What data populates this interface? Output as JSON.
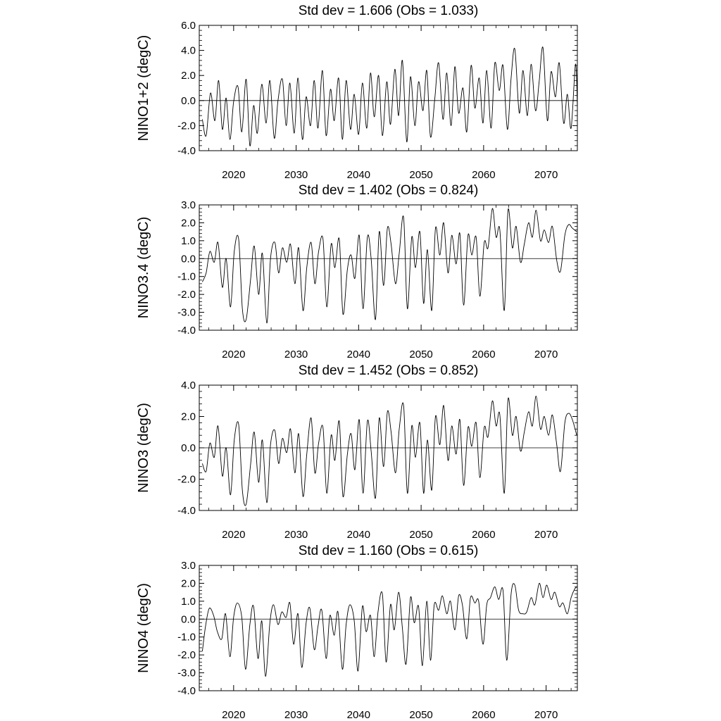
{
  "chart_data": [
    {
      "type": "line",
      "title": "Std dev = 1.606 (Obs = 1.033)",
      "ylabel": "NINO1+2 (degC)",
      "xlabel": "",
      "xlim": [
        2014.5,
        2075
      ],
      "ylim": [
        -4.0,
        6.0
      ],
      "yticks": [
        -4.0,
        -2.0,
        0.0,
        2.0,
        4.0,
        6.0
      ],
      "ytick_labels": [
        "-4.0",
        "-2.0",
        "0.0",
        "2.0",
        "4.0",
        "6.0"
      ],
      "xticks": [
        2020,
        2030,
        2040,
        2050,
        2060,
        2070
      ],
      "xtick_labels": [
        "2020",
        "2030",
        "2040",
        "2050",
        "2060",
        "2070"
      ],
      "zero_line": true,
      "grid": false,
      "series": [
        {
          "x": [
            2015.0,
            2015.6,
            2016.3,
            2017.0,
            2017.6,
            2018.2,
            2018.8,
            2019.4,
            2020.0,
            2020.7,
            2021.3,
            2022.0,
            2022.6,
            2023.2,
            2023.8,
            2024.5,
            2025.2,
            2025.8,
            2026.5,
            2027.1,
            2027.8,
            2028.4,
            2029.0,
            2029.7,
            2030.3,
            2031.0,
            2031.6,
            2032.3,
            2032.9,
            2033.5,
            2034.2,
            2034.8,
            2035.5,
            2036.1,
            2036.8,
            2037.4,
            2038.0,
            2038.7,
            2039.3,
            2040.0,
            2040.6,
            2041.3,
            2041.9,
            2042.5,
            2043.2,
            2043.8,
            2044.5,
            2045.1,
            2045.8,
            2046.4,
            2047.0,
            2047.7,
            2048.3,
            2049.0,
            2049.6,
            2050.3,
            2050.9,
            2051.5,
            2052.2,
            2052.8,
            2053.5,
            2054.1,
            2054.8,
            2055.4,
            2056.0,
            2056.7,
            2057.3,
            2058.0,
            2058.6,
            2059.3,
            2059.9,
            2060.5,
            2061.2,
            2061.8,
            2062.5,
            2063.1,
            2063.8,
            2064.4,
            2065.0,
            2065.7,
            2066.3,
            2067.0,
            2067.6,
            2068.3,
            2068.9,
            2069.5,
            2070.2,
            2070.8,
            2071.5,
            2072.1,
            2072.8,
            2073.4,
            2074.0,
            2074.7,
            2075.0
          ],
          "y": [
            -1.5,
            -2.8,
            0.6,
            -1.6,
            1.6,
            -2.3,
            0.2,
            -3.1,
            -0.1,
            1.1,
            -2.5,
            1.7,
            -3.6,
            -0.4,
            -2.6,
            1.3,
            -1.8,
            1.6,
            -3.0,
            0.0,
            1.7,
            -2.0,
            1.4,
            -2.6,
            1.8,
            -3.1,
            0.3,
            -2.0,
            1.6,
            -2.2,
            2.4,
            -2.8,
            0.9,
            -1.6,
            1.8,
            -3.1,
            1.6,
            -2.3,
            0.5,
            -2.7,
            1.4,
            -2.2,
            2.2,
            -1.3,
            2.0,
            -2.8,
            1.5,
            -1.9,
            2.5,
            -1.2,
            3.2,
            -3.3,
            1.9,
            -2.0,
            1.5,
            -0.8,
            2.4,
            -2.9,
            0.2,
            3.0,
            -1.5,
            2.2,
            -2.0,
            2.7,
            -1.0,
            1.0,
            -2.5,
            2.8,
            -0.6,
            1.8,
            -1.8,
            2.4,
            -2.2,
            3.0,
            0.8,
            2.8,
            -2.3,
            1.8,
            4.1,
            -1.0,
            2.4,
            -1.2,
            2.9,
            -0.8,
            1.6,
            4.2,
            -1.6,
            2.3,
            0.3,
            3.0,
            -1.8,
            0.5,
            -2.2,
            2.9,
            -0.5
          ]
        }
      ]
    },
    {
      "type": "line",
      "title": "Std dev = 1.402 (Obs = 0.824)",
      "ylabel": "NINO3.4 (degC)",
      "xlabel": "",
      "xlim": [
        2014.5,
        2075
      ],
      "ylim": [
        -4.0,
        3.0
      ],
      "yticks": [
        -4.0,
        -3.0,
        -2.0,
        -1.0,
        0.0,
        1.0,
        2.0,
        3.0
      ],
      "ytick_labels": [
        "-4.0",
        "-3.0",
        "-2.0",
        "-1.0",
        "0.0",
        "1.0",
        "2.0",
        "3.0"
      ],
      "xticks": [
        2020,
        2030,
        2040,
        2050,
        2060,
        2070
      ],
      "xtick_labels": [
        "2020",
        "2030",
        "2040",
        "2050",
        "2060",
        "2070"
      ],
      "zero_line": true,
      "grid": false,
      "series": [
        {
          "x": [
            2015.0,
            2015.6,
            2016.2,
            2016.9,
            2017.5,
            2018.2,
            2018.8,
            2019.5,
            2020.1,
            2020.8,
            2021.4,
            2022.0,
            2022.7,
            2023.3,
            2024.0,
            2024.6,
            2025.3,
            2025.9,
            2026.6,
            2027.2,
            2027.8,
            2028.5,
            2029.1,
            2029.8,
            2030.4,
            2031.1,
            2031.7,
            2032.4,
            2033.0,
            2033.6,
            2034.3,
            2034.9,
            2035.6,
            2036.2,
            2036.9,
            2037.5,
            2038.2,
            2038.8,
            2039.4,
            2040.1,
            2040.7,
            2041.4,
            2042.0,
            2042.7,
            2043.3,
            2044.0,
            2044.6,
            2045.2,
            2045.9,
            2046.5,
            2047.2,
            2047.8,
            2048.5,
            2049.1,
            2049.8,
            2050.4,
            2051.0,
            2051.7,
            2052.3,
            2053.0,
            2053.6,
            2054.3,
            2054.9,
            2055.6,
            2056.2,
            2056.8,
            2057.5,
            2058.1,
            2058.8,
            2059.4,
            2060.1,
            2060.7,
            2061.4,
            2062.0,
            2062.6,
            2063.3,
            2063.9,
            2064.6,
            2065.2,
            2065.9,
            2066.5,
            2067.2,
            2067.8,
            2068.4,
            2069.1,
            2069.7,
            2070.4,
            2071.0,
            2071.7,
            2072.3,
            2073.0,
            2073.6,
            2074.2,
            2074.9
          ],
          "y": [
            -1.3,
            -0.8,
            0.4,
            -0.2,
            0.9,
            -1.6,
            0.0,
            -2.7,
            0.4,
            1.1,
            -2.8,
            -3.4,
            -1.2,
            0.7,
            -2.0,
            0.3,
            -3.6,
            0.0,
            0.9,
            -0.8,
            0.6,
            -0.2,
            0.8,
            -1.4,
            0.6,
            -2.9,
            -0.5,
            0.9,
            -1.4,
            0.4,
            1.1,
            -2.7,
            0.8,
            -0.5,
            1.1,
            -3.1,
            -0.6,
            0.2,
            -1.1,
            1.3,
            -2.8,
            1.2,
            0.0,
            -3.4,
            1.5,
            -1.5,
            1.7,
            0.8,
            -1.4,
            0.3,
            2.3,
            -2.8,
            1.2,
            -0.5,
            1.5,
            -2.5,
            0.5,
            -2.9,
            1.7,
            0.2,
            2.0,
            -0.8,
            1.3,
            -0.3,
            1.4,
            -2.6,
            1.3,
            0.2,
            1.2,
            -2.1,
            0.9,
            0.6,
            2.8,
            1.2,
            1.6,
            -2.9,
            2.7,
            0.6,
            1.8,
            -0.2,
            0.8,
            2.0,
            1.2,
            2.7,
            1.0,
            1.6,
            0.9,
            1.8,
            -0.1,
            -0.7,
            1.3,
            1.9,
            1.7,
            1.5
          ]
        }
      ]
    },
    {
      "type": "line",
      "title": "Std dev = 1.452 (Obs = 0.852)",
      "ylabel": "NINO3 (degC)",
      "xlabel": "",
      "xlim": [
        2014.5,
        2075
      ],
      "ylim": [
        -4.0,
        4.0
      ],
      "yticks": [
        -4.0,
        -2.0,
        0.0,
        2.0,
        4.0
      ],
      "ytick_labels": [
        "-4.0",
        "-2.0",
        "0.0",
        "2.0",
        "4.0"
      ],
      "xticks": [
        2020,
        2030,
        2040,
        2050,
        2060,
        2070
      ],
      "xtick_labels": [
        "2020",
        "2030",
        "2040",
        "2050",
        "2060",
        "2070"
      ],
      "zero_line": true,
      "grid": false,
      "series": [
        {
          "x": [
            2015.0,
            2015.6,
            2016.2,
            2016.9,
            2017.5,
            2018.2,
            2018.8,
            2019.5,
            2020.1,
            2020.8,
            2021.4,
            2022.0,
            2022.7,
            2023.3,
            2024.0,
            2024.6,
            2025.3,
            2025.9,
            2026.6,
            2027.2,
            2027.8,
            2028.5,
            2029.1,
            2029.8,
            2030.4,
            2031.1,
            2031.7,
            2032.4,
            2033.0,
            2033.6,
            2034.3,
            2034.9,
            2035.6,
            2036.2,
            2036.9,
            2037.5,
            2038.2,
            2038.8,
            2039.4,
            2040.1,
            2040.7,
            2041.4,
            2042.0,
            2042.7,
            2043.3,
            2044.0,
            2044.6,
            2045.2,
            2045.9,
            2046.5,
            2047.2,
            2047.8,
            2048.5,
            2049.1,
            2049.8,
            2050.4,
            2051.0,
            2051.7,
            2052.3,
            2053.0,
            2053.6,
            2054.3,
            2054.9,
            2055.6,
            2056.2,
            2056.8,
            2057.5,
            2058.1,
            2058.8,
            2059.4,
            2060.1,
            2060.7,
            2061.4,
            2062.0,
            2062.6,
            2063.3,
            2063.9,
            2064.6,
            2065.2,
            2065.9,
            2066.5,
            2067.2,
            2067.8,
            2068.4,
            2069.1,
            2069.7,
            2070.4,
            2071.0,
            2071.7,
            2072.3,
            2073.0,
            2073.6,
            2074.2,
            2074.9
          ],
          "y": [
            -1.0,
            -1.5,
            0.3,
            -0.6,
            1.4,
            -1.8,
            0.0,
            -3.0,
            0.5,
            1.5,
            -2.7,
            -3.6,
            -1.1,
            1.0,
            -2.2,
            0.5,
            -3.5,
            0.2,
            1.1,
            -1.0,
            0.6,
            -0.3,
            1.2,
            -1.6,
            0.9,
            -3.1,
            -0.4,
            1.9,
            -1.6,
            0.3,
            1.3,
            -2.9,
            0.8,
            -0.8,
            1.7,
            -3.1,
            -0.4,
            0.9,
            -1.4,
            1.8,
            -2.9,
            1.7,
            -0.2,
            -3.2,
            1.9,
            -1.2,
            2.3,
            1.0,
            -1.6,
            1.2,
            2.7,
            -2.9,
            1.4,
            -0.6,
            1.6,
            -2.9,
            0.5,
            -2.7,
            2.0,
            0.2,
            2.7,
            -0.8,
            1.4,
            -0.4,
            1.8,
            -2.4,
            1.3,
            0.1,
            1.6,
            -1.9,
            1.3,
            0.7,
            3.0,
            1.4,
            2.1,
            -2.9,
            3.1,
            0.8,
            2.0,
            -0.2,
            1.0,
            2.3,
            1.4,
            3.3,
            1.2,
            2.0,
            0.8,
            2.1,
            0.2,
            -1.5,
            1.6,
            2.2,
            1.8,
            0.8
          ]
        }
      ]
    },
    {
      "type": "line",
      "title": "Std dev = 1.160 (Obs = 0.615)",
      "ylabel": "NINO4 (degC)",
      "xlabel": "",
      "xlim": [
        2014.5,
        2075
      ],
      "ylim": [
        -4.0,
        3.0
      ],
      "yticks": [
        -4.0,
        -3.0,
        -2.0,
        -1.0,
        0.0,
        1.0,
        2.0,
        3.0
      ],
      "ytick_labels": [
        "-4.0",
        "-3.0",
        "-2.0",
        "-1.0",
        "0.0",
        "1.0",
        "2.0",
        "3.0"
      ],
      "xticks": [
        2020,
        2030,
        2040,
        2050,
        2060,
        2070
      ],
      "xtick_labels": [
        "2020",
        "2030",
        "2040",
        "2050",
        "2060",
        "2070"
      ],
      "zero_line": true,
      "grid": false,
      "series": [
        {
          "x": [
            2015.0,
            2015.5,
            2016.1,
            2016.8,
            2017.4,
            2018.1,
            2018.7,
            2019.4,
            2020.0,
            2020.6,
            2021.3,
            2021.9,
            2022.6,
            2023.2,
            2023.9,
            2024.5,
            2025.1,
            2025.8,
            2026.4,
            2027.1,
            2027.7,
            2028.4,
            2029.0,
            2029.6,
            2030.3,
            2030.9,
            2031.6,
            2032.2,
            2032.9,
            2033.5,
            2034.1,
            2034.8,
            2035.4,
            2036.1,
            2036.7,
            2037.4,
            2038.0,
            2038.6,
            2039.3,
            2039.9,
            2040.6,
            2041.2,
            2041.9,
            2042.5,
            2043.1,
            2043.8,
            2044.4,
            2045.1,
            2045.7,
            2046.4,
            2047.0,
            2047.6,
            2048.3,
            2048.9,
            2049.6,
            2050.2,
            2050.9,
            2051.5,
            2052.1,
            2052.8,
            2053.4,
            2054.1,
            2054.7,
            2055.4,
            2056.0,
            2056.6,
            2057.3,
            2057.9,
            2058.6,
            2059.2,
            2059.9,
            2060.5,
            2061.1,
            2061.8,
            2062.4,
            2063.1,
            2063.7,
            2064.4,
            2065.0,
            2065.6,
            2066.3,
            2066.9,
            2067.6,
            2068.2,
            2068.9,
            2069.5,
            2070.1,
            2070.8,
            2071.4,
            2072.1,
            2072.7,
            2073.4,
            2074.0,
            2074.6,
            2075.0
          ],
          "y": [
            -1.8,
            -0.4,
            0.6,
            0.2,
            -0.7,
            -1.1,
            0.3,
            -2.1,
            0.1,
            0.9,
            0.1,
            -2.8,
            -0.3,
            0.7,
            -2.2,
            -0.1,
            -3.2,
            -0.2,
            0.8,
            -0.3,
            0.4,
            0.1,
            0.9,
            -1.4,
            0.3,
            -2.7,
            -0.2,
            0.6,
            -1.7,
            -0.4,
            0.5,
            -2.2,
            0.2,
            -0.9,
            0.4,
            -2.8,
            -0.3,
            0.8,
            -0.1,
            -2.9,
            0.7,
            -0.7,
            0.2,
            -2.1,
            0.4,
            1.4,
            -2.4,
            0.8,
            -0.6,
            1.5,
            -0.5,
            -2.5,
            1.2,
            -0.2,
            0.7,
            -2.6,
            1.0,
            -2.3,
            0.8,
            0.5,
            1.3,
            0.3,
            1.0,
            -0.6,
            1.3,
            0.8,
            -1.1,
            1.2,
            0.9,
            1.0,
            -1.4,
            0.8,
            1.2,
            1.8,
            1.1,
            1.6,
            -2.3,
            1.4,
            1.9,
            0.5,
            0.3,
            0.4,
            1.2,
            0.8,
            2.0,
            1.2,
            1.9,
            1.1,
            1.5,
            0.7,
            0.9,
            0.3,
            1.2,
            1.7,
            1.8
          ]
        }
      ]
    }
  ]
}
